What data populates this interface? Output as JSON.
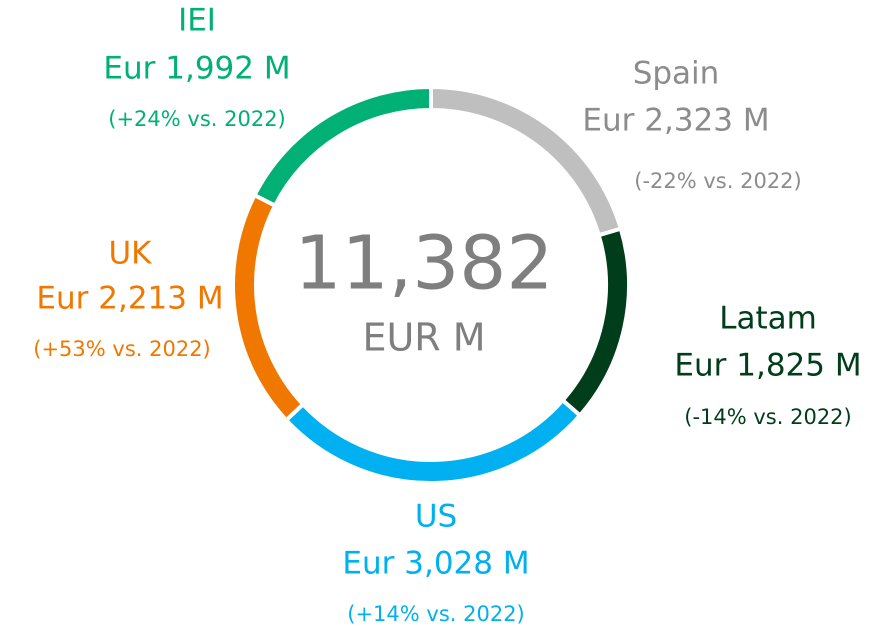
{
  "chart_data": {
    "type": "donut",
    "categories": [
      "Spain",
      "Latam",
      "US",
      "UK",
      "IEI"
    ],
    "values": [
      2323,
      1825,
      3028,
      2213,
      1992
    ],
    "value_labels": [
      "Eur 2,323 M",
      "Eur 1,825 M",
      "Eur 3,028 M",
      "Eur 2,213 M",
      "Eur 1,992 M"
    ],
    "changes": [
      "(-22% vs. 2022)",
      "(-14% vs. 2022)",
      "(+14% vs. 2022)",
      "(+53% vs. 2022)",
      "(+24% vs. 2022)"
    ],
    "colors": [
      "#bfbfbf",
      "#003d1a",
      "#00b0f0",
      "#f07800",
      "#00b074"
    ],
    "center_value": "11,382",
    "center_unit": "EUR M"
  }
}
